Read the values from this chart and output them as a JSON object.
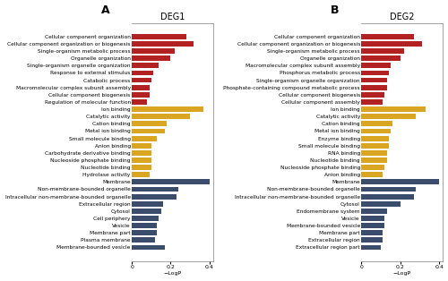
{
  "deg1": {
    "title": "DEG1",
    "categories_red": [
      "Cellular component organization",
      "Cellular component organization or biogenesis",
      "Single-organism metabolic process",
      "Organelle organization",
      "Single-organism organelle organization",
      "Response to external stimulus",
      "Catabolic process",
      "Macromolecular complex subunit assembly",
      "Cellular component biogenesis",
      "Regulation of molecular function"
    ],
    "values_red": [
      0.28,
      0.32,
      0.22,
      0.2,
      0.14,
      0.11,
      0.1,
      0.09,
      0.09,
      0.08
    ],
    "categories_yellow": [
      "Ion binding",
      "Catalytic activity",
      "Cation binding",
      "Metal ion binding",
      "Small molecule binding",
      "Anion binding",
      "Carbohydrate derivative binding",
      "Nucleoside phosphate binding",
      "Nucleotide binding",
      "Hydrolase activity"
    ],
    "values_yellow": [
      0.37,
      0.3,
      0.18,
      0.17,
      0.13,
      0.1,
      0.1,
      0.1,
      0.1,
      0.09
    ],
    "categories_blue": [
      "Membrane",
      "Non-membrane-bounded organelle",
      "Intracellular non-membrane-bounded organelle",
      "Extracellular region",
      "Cytosol",
      "Cell periphery",
      "Vesicle",
      "Membrane part",
      "Plasma membrane",
      "Membrane-bounded vesicle"
    ],
    "values_blue": [
      0.4,
      0.24,
      0.23,
      0.16,
      0.15,
      0.14,
      0.13,
      0.13,
      0.12,
      0.17
    ]
  },
  "deg2": {
    "title": "DEG2",
    "categories_red": [
      "Cellular component organization",
      "Cellular component organization or biogenesis",
      "Single-organism metabolic process",
      "Organelle organization",
      "Macromolecular complex subunit assembly",
      "Phosphorus metabolic process",
      "Single-organism organelle organization",
      "Phosphate-containing compound metabolic process",
      "Cellular component biogenesis",
      "Cellular component assembly"
    ],
    "values_red": [
      0.27,
      0.31,
      0.22,
      0.2,
      0.15,
      0.14,
      0.13,
      0.13,
      0.12,
      0.11
    ],
    "categories_yellow": [
      "Ion binding",
      "Catalytic activity",
      "Cation binding",
      "Metal ion binding",
      "Enzyme binding",
      "Small molecule binding",
      "RNA binding",
      "Nucleotide binding",
      "Nucleoside phosphate binding",
      "Anion binding"
    ],
    "values_yellow": [
      0.33,
      0.28,
      0.16,
      0.15,
      0.14,
      0.14,
      0.13,
      0.13,
      0.12,
      0.11
    ],
    "categories_blue": [
      "Membrane",
      "Non-membrane-bounded organelle",
      "Intracellular non-membrane-bounded organelle",
      "Cytosol",
      "Endomembrane system",
      "Vesicle",
      "Membrane-bounded vesicle",
      "Membrane part",
      "Extracellular region",
      "Extracellular region part"
    ],
    "values_blue": [
      0.4,
      0.28,
      0.27,
      0.2,
      0.13,
      0.12,
      0.12,
      0.11,
      0.11,
      0.1
    ]
  },
  "color_red": "#B22222",
  "color_yellow": "#DAA520",
  "color_blue": "#3B4D6B",
  "xlim": [
    0,
    0.42
  ],
  "xlabel": "−LogP",
  "bar_height": 0.72,
  "label_fontsize": 4.2,
  "tick_fontsize": 4.5,
  "title_fontsize": 7
}
